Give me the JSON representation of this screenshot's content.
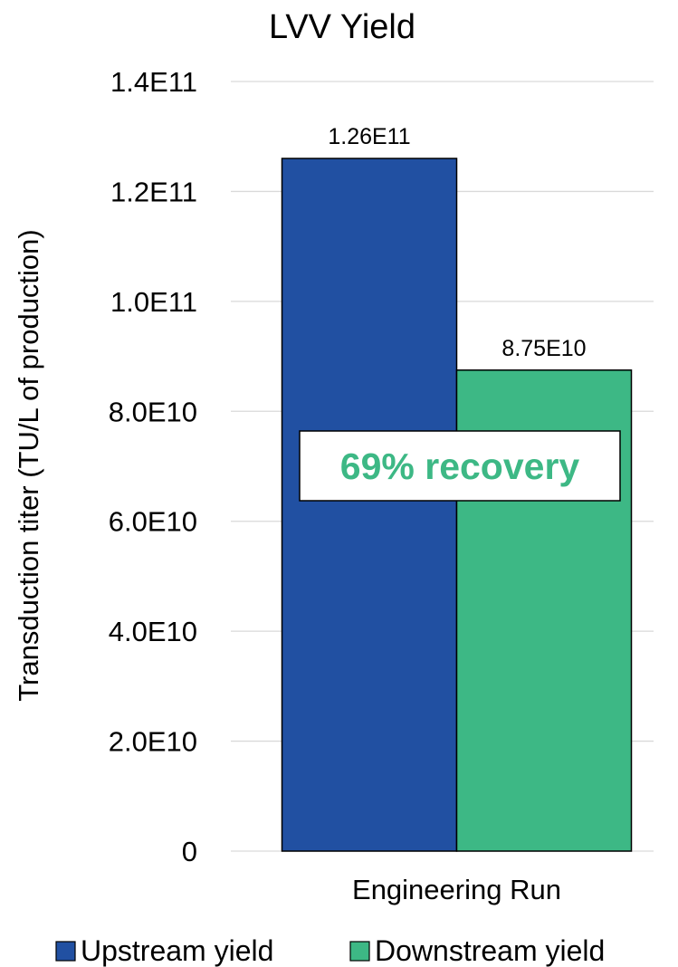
{
  "chart_data": {
    "type": "bar",
    "title": "LVV Yield",
    "xlabel": "",
    "ylabel": "Transduction titer (TU/L of production)",
    "categories": [
      "Engineering Run"
    ],
    "series": [
      {
        "name": "Upstream yield",
        "values": [
          126000000000
        ],
        "label": "1.26E11",
        "color": "#2150a2"
      },
      {
        "name": "Downstream yield",
        "values": [
          87500000000
        ],
        "label": "8.75E10",
        "color": "#3db885"
      }
    ],
    "ylim": [
      0,
      140000000000
    ],
    "yticks": [
      {
        "value": 0,
        "label": "0"
      },
      {
        "value": 20000000000,
        "label": "2.0E10"
      },
      {
        "value": 40000000000,
        "label": "4.0E10"
      },
      {
        "value": 60000000000,
        "label": "6.0E10"
      },
      {
        "value": 80000000000,
        "label": "8.0E10"
      },
      {
        "value": 100000000000,
        "label": "1.0E11"
      },
      {
        "value": 120000000000,
        "label": "1.2E11"
      },
      {
        "value": 140000000000,
        "label": "1.4E11"
      }
    ],
    "grid": true,
    "legend_position": "bottom",
    "annotation": {
      "text": "69% recovery",
      "color": "#3db885"
    }
  }
}
